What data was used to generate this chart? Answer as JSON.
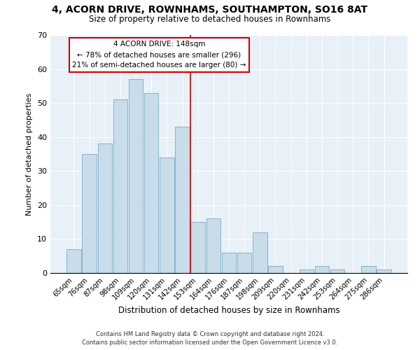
{
  "title": "4, ACORN DRIVE, ROWNHAMS, SOUTHAMPTON, SO16 8AT",
  "subtitle": "Size of property relative to detached houses in Rownhams",
  "xlabel": "Distribution of detached houses by size in Rownhams",
  "ylabel": "Number of detached properties",
  "bar_color": "#c8dcea",
  "bar_edge_color": "#7aaac8",
  "background_color": "#e8f0f8",
  "grid_color": "#ffffff",
  "categories": [
    "65sqm",
    "76sqm",
    "87sqm",
    "98sqm",
    "109sqm",
    "120sqm",
    "131sqm",
    "142sqm",
    "153sqm",
    "164sqm",
    "176sqm",
    "187sqm",
    "198sqm",
    "209sqm",
    "220sqm",
    "231sqm",
    "242sqm",
    "253sqm",
    "264sqm",
    "275sqm",
    "286sqm"
  ],
  "values": [
    7,
    35,
    38,
    51,
    57,
    53,
    34,
    43,
    15,
    16,
    6,
    6,
    12,
    2,
    0,
    1,
    2,
    1,
    0,
    2,
    1
  ],
  "vline_color": "#cc0000",
  "annotation_text": "4 ACORN DRIVE: 148sqm\n← 78% of detached houses are smaller (296)\n21% of semi-detached houses are larger (80) →",
  "annotation_box_color": "#ffffff",
  "annotation_border_color": "#cc0000",
  "ylim": [
    0,
    70
  ],
  "yticks": [
    0,
    10,
    20,
    30,
    40,
    50,
    60,
    70
  ],
  "footer1": "Contains HM Land Registry data © Crown copyright and database right 2024.",
  "footer2": "Contains public sector information licensed under the Open Government Licence v3.0."
}
